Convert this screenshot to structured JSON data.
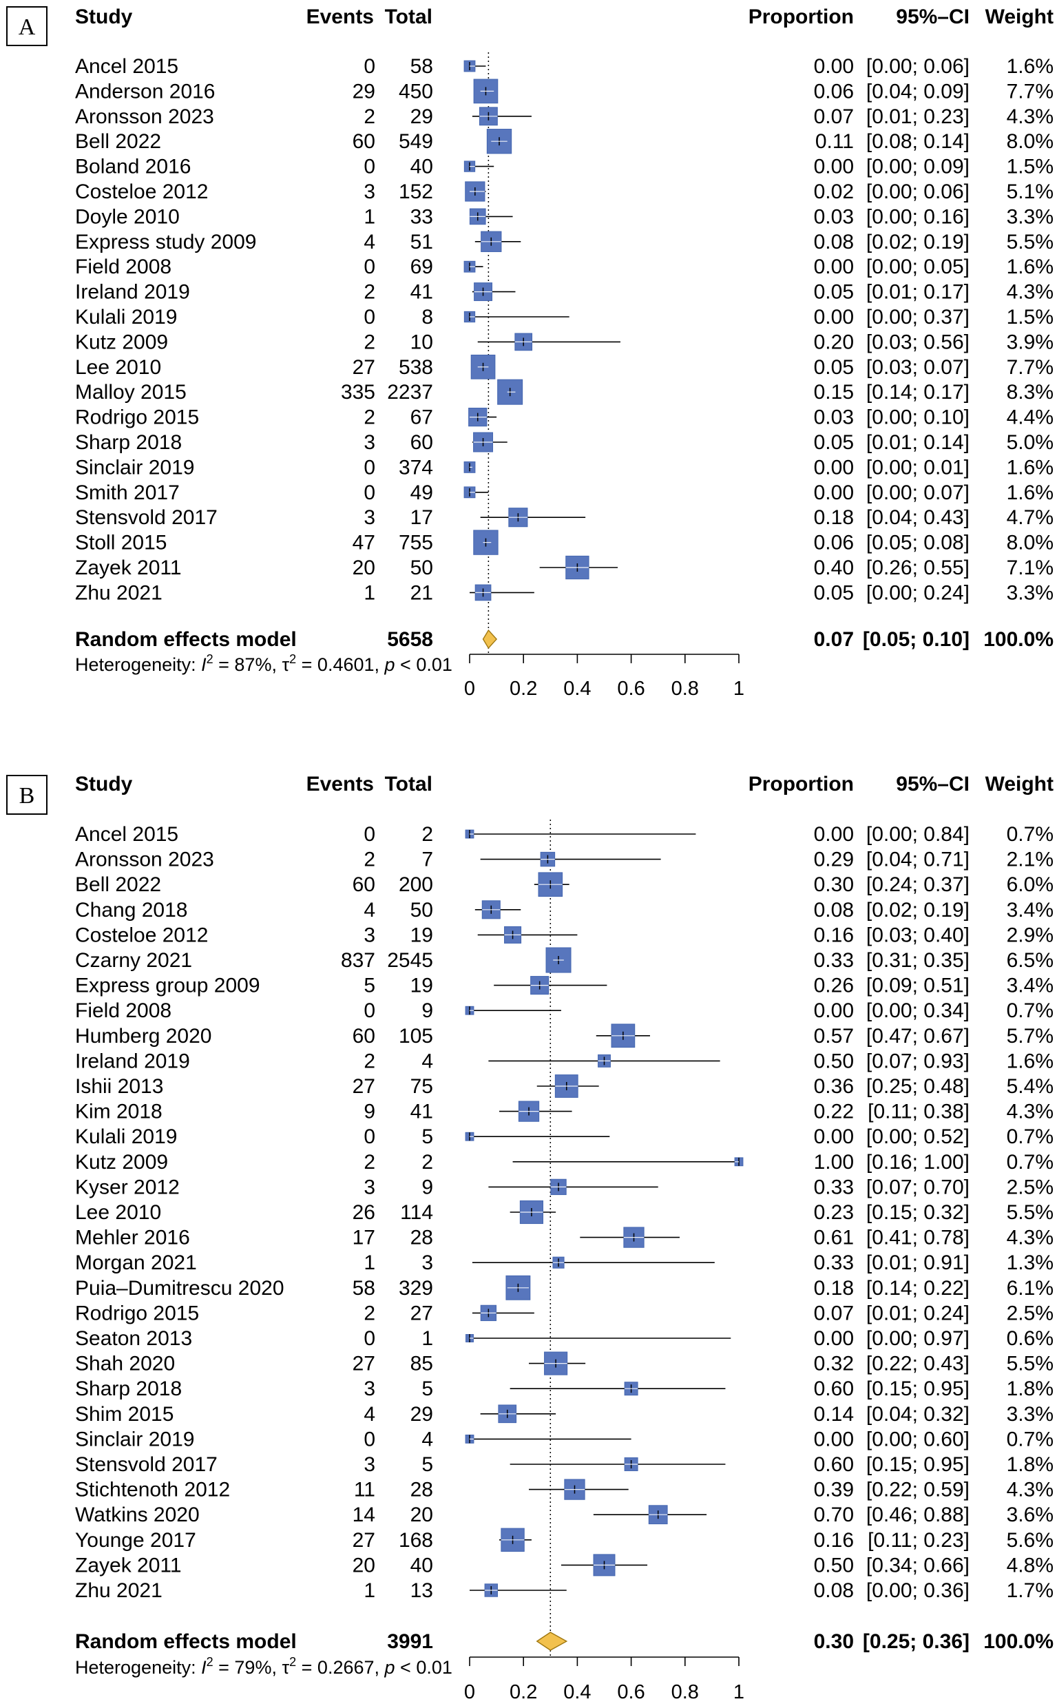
{
  "colors": {
    "box": "#5876bd",
    "box_edge": "#4466b0",
    "diamond": "#f2c14e",
    "diamond_edge": "#a07810",
    "line": "#000000"
  },
  "chart_data": [
    {
      "type": "forest",
      "panel": "A",
      "headers": {
        "study": "Study",
        "events": "Events",
        "total": "Total",
        "proportion": "Proportion",
        "ci": "95%–CI",
        "weight": "Weight"
      },
      "xlim": [
        0,
        1
      ],
      "ticks": [
        "0",
        "0.2",
        "0.4",
        "0.6",
        "0.8",
        "1"
      ],
      "tick_values": [
        0,
        0.2,
        0.4,
        0.6,
        0.8,
        1
      ],
      "rows": [
        {
          "study": "Ancel 2015",
          "events": "0",
          "total": "58",
          "est": 0.0,
          "lo": 0.0,
          "hi": 0.06,
          "prop": "0.00",
          "ci": "[0.00; 0.06]",
          "weight": "1.6%",
          "w": 1.6
        },
        {
          "study": "Anderson 2016",
          "events": "29",
          "total": "450",
          "est": 0.06,
          "lo": 0.04,
          "hi": 0.09,
          "prop": "0.06",
          "ci": "[0.04; 0.09]",
          "weight": "7.7%",
          "w": 7.7
        },
        {
          "study": "Aronsson 2023",
          "events": "2",
          "total": "29",
          "est": 0.07,
          "lo": 0.01,
          "hi": 0.23,
          "prop": "0.07",
          "ci": "[0.01; 0.23]",
          "weight": "4.3%",
          "w": 4.3
        },
        {
          "study": "Bell 2022",
          "events": "60",
          "total": "549",
          "est": 0.11,
          "lo": 0.08,
          "hi": 0.14,
          "prop": "0.11",
          "ci": "[0.08; 0.14]",
          "weight": "8.0%",
          "w": 8.0
        },
        {
          "study": "Boland 2016",
          "events": "0",
          "total": "40",
          "est": 0.0,
          "lo": 0.0,
          "hi": 0.09,
          "prop": "0.00",
          "ci": "[0.00; 0.09]",
          "weight": "1.5%",
          "w": 1.5
        },
        {
          "study": "Costeloe 2012",
          "events": "3",
          "total": "152",
          "est": 0.02,
          "lo": 0.0,
          "hi": 0.06,
          "prop": "0.02",
          "ci": "[0.00; 0.06]",
          "weight": "5.1%",
          "w": 5.1
        },
        {
          "study": "Doyle 2010",
          "events": "1",
          "total": "33",
          "est": 0.03,
          "lo": 0.0,
          "hi": 0.16,
          "prop": "0.03",
          "ci": "[0.00; 0.16]",
          "weight": "3.3%",
          "w": 3.3
        },
        {
          "study": "Express study 2009",
          "events": "4",
          "total": "51",
          "est": 0.08,
          "lo": 0.02,
          "hi": 0.19,
          "prop": "0.08",
          "ci": "[0.02; 0.19]",
          "weight": "5.5%",
          "w": 5.5
        },
        {
          "study": "Field 2008",
          "events": "0",
          "total": "69",
          "est": 0.0,
          "lo": 0.0,
          "hi": 0.05,
          "prop": "0.00",
          "ci": "[0.00; 0.05]",
          "weight": "1.6%",
          "w": 1.6
        },
        {
          "study": "Ireland 2019",
          "events": "2",
          "total": "41",
          "est": 0.05,
          "lo": 0.01,
          "hi": 0.17,
          "prop": "0.05",
          "ci": "[0.01; 0.17]",
          "weight": "4.3%",
          "w": 4.3
        },
        {
          "study": "Kulali 2019",
          "events": "0",
          "total": "8",
          "est": 0.0,
          "lo": 0.0,
          "hi": 0.37,
          "prop": "0.00",
          "ci": "[0.00; 0.37]",
          "weight": "1.5%",
          "w": 1.5
        },
        {
          "study": "Kutz 2009",
          "events": "2",
          "total": "10",
          "est": 0.2,
          "lo": 0.03,
          "hi": 0.56,
          "prop": "0.20",
          "ci": "[0.03; 0.56]",
          "weight": "3.9%",
          "w": 3.9
        },
        {
          "study": "Lee 2010",
          "events": "27",
          "total": "538",
          "est": 0.05,
          "lo": 0.03,
          "hi": 0.07,
          "prop": "0.05",
          "ci": "[0.03; 0.07]",
          "weight": "7.7%",
          "w": 7.7
        },
        {
          "study": "Malloy 2015",
          "events": "335",
          "total": "2237",
          "est": 0.15,
          "lo": 0.14,
          "hi": 0.17,
          "prop": "0.15",
          "ci": "[0.14; 0.17]",
          "weight": "8.3%",
          "w": 8.3
        },
        {
          "study": "Rodrigo 2015",
          "events": "2",
          "total": "67",
          "est": 0.03,
          "lo": 0.0,
          "hi": 0.1,
          "prop": "0.03",
          "ci": "[0.00; 0.10]",
          "weight": "4.4%",
          "w": 4.4
        },
        {
          "study": "Sharp 2018",
          "events": "3",
          "total": "60",
          "est": 0.05,
          "lo": 0.01,
          "hi": 0.14,
          "prop": "0.05",
          "ci": "[0.01; 0.14]",
          "weight": "5.0%",
          "w": 5.0
        },
        {
          "study": "Sinclair 2019",
          "events": "0",
          "total": "374",
          "est": 0.0,
          "lo": 0.0,
          "hi": 0.01,
          "prop": "0.00",
          "ci": "[0.00; 0.01]",
          "weight": "1.6%",
          "w": 1.6
        },
        {
          "study": "Smith 2017",
          "events": "0",
          "total": "49",
          "est": 0.0,
          "lo": 0.0,
          "hi": 0.07,
          "prop": "0.00",
          "ci": "[0.00; 0.07]",
          "weight": "1.6%",
          "w": 1.6
        },
        {
          "study": "Stensvold 2017",
          "events": "3",
          "total": "17",
          "est": 0.18,
          "lo": 0.04,
          "hi": 0.43,
          "prop": "0.18",
          "ci": "[0.04; 0.43]",
          "weight": "4.7%",
          "w": 4.7
        },
        {
          "study": "Stoll 2015",
          "events": "47",
          "total": "755",
          "est": 0.06,
          "lo": 0.05,
          "hi": 0.08,
          "prop": "0.06",
          "ci": "[0.05; 0.08]",
          "weight": "8.0%",
          "w": 8.0
        },
        {
          "study": "Zayek 2011",
          "events": "20",
          "total": "50",
          "est": 0.4,
          "lo": 0.26,
          "hi": 0.55,
          "prop": "0.40",
          "ci": "[0.26; 0.55]",
          "weight": "7.1%",
          "w": 7.1
        },
        {
          "study": "Zhu 2021",
          "events": "1",
          "total": "21",
          "est": 0.05,
          "lo": 0.0,
          "hi": 0.24,
          "prop": "0.05",
          "ci": "[0.00; 0.24]",
          "weight": "3.3%",
          "w": 3.3
        }
      ],
      "summary": {
        "label": "Random effects model",
        "total": "5658",
        "est": 0.07,
        "lo": 0.05,
        "hi": 0.1,
        "prop": "0.07",
        "ci": "[0.05; 0.10]",
        "weight": "100.0%"
      },
      "heterogeneity": {
        "prefix": "Heterogeneity: ",
        "i2_sym": "I",
        "i2_val": " = 87%, ",
        "tau_sym": "τ",
        "tau_val": " = 0.4601, ",
        "p_sym": "p",
        "p_val": " < 0.01",
        "sup": "2"
      }
    },
    {
      "type": "forest",
      "panel": "B",
      "headers": {
        "study": "Study",
        "events": "Events",
        "total": "Total",
        "proportion": "Proportion",
        "ci": "95%–CI",
        "weight": "Weight"
      },
      "xlim": [
        0,
        1
      ],
      "ticks": [
        "0",
        "0.2",
        "0.4",
        "0.6",
        "0.8",
        "1"
      ],
      "tick_values": [
        0,
        0.2,
        0.4,
        0.6,
        0.8,
        1
      ],
      "rows": [
        {
          "study": "Ancel 2015",
          "events": "0",
          "total": "2",
          "est": 0.0,
          "lo": 0.0,
          "hi": 0.84,
          "prop": "0.00",
          "ci": "[0.00; 0.84]",
          "weight": "0.7%",
          "w": 0.7
        },
        {
          "study": "Aronsson 2023",
          "events": "2",
          "total": "7",
          "est": 0.29,
          "lo": 0.04,
          "hi": 0.71,
          "prop": "0.29",
          "ci": "[0.04; 0.71]",
          "weight": "2.1%",
          "w": 2.1
        },
        {
          "study": "Bell 2022",
          "events": "60",
          "total": "200",
          "est": 0.3,
          "lo": 0.24,
          "hi": 0.37,
          "prop": "0.30",
          "ci": "[0.24; 0.37]",
          "weight": "6.0%",
          "w": 6.0
        },
        {
          "study": "Chang 2018",
          "events": "4",
          "total": "50",
          "est": 0.08,
          "lo": 0.02,
          "hi": 0.19,
          "prop": "0.08",
          "ci": "[0.02; 0.19]",
          "weight": "3.4%",
          "w": 3.4
        },
        {
          "study": "Costeloe 2012",
          "events": "3",
          "total": "19",
          "est": 0.16,
          "lo": 0.03,
          "hi": 0.4,
          "prop": "0.16",
          "ci": "[0.03; 0.40]",
          "weight": "2.9%",
          "w": 2.9
        },
        {
          "study": "Czarny 2021",
          "events": "837",
          "total": "2545",
          "est": 0.33,
          "lo": 0.31,
          "hi": 0.35,
          "prop": "0.33",
          "ci": "[0.31; 0.35]",
          "weight": "6.5%",
          "w": 6.5
        },
        {
          "study": "Express group 2009",
          "events": "5",
          "total": "19",
          "est": 0.26,
          "lo": 0.09,
          "hi": 0.51,
          "prop": "0.26",
          "ci": "[0.09; 0.51]",
          "weight": "3.4%",
          "w": 3.4
        },
        {
          "study": "Field 2008",
          "events": "0",
          "total": "9",
          "est": 0.0,
          "lo": 0.0,
          "hi": 0.34,
          "prop": "0.00",
          "ci": "[0.00; 0.34]",
          "weight": "0.7%",
          "w": 0.7
        },
        {
          "study": "Humberg 2020",
          "events": "60",
          "total": "105",
          "est": 0.57,
          "lo": 0.47,
          "hi": 0.67,
          "prop": "0.57",
          "ci": "[0.47; 0.67]",
          "weight": "5.7%",
          "w": 5.7
        },
        {
          "study": "Ireland 2019",
          "events": "2",
          "total": "4",
          "est": 0.5,
          "lo": 0.07,
          "hi": 0.93,
          "prop": "0.50",
          "ci": "[0.07; 0.93]",
          "weight": "1.6%",
          "w": 1.6
        },
        {
          "study": "Ishii 2013",
          "events": "27",
          "total": "75",
          "est": 0.36,
          "lo": 0.25,
          "hi": 0.48,
          "prop": "0.36",
          "ci": "[0.25; 0.48]",
          "weight": "5.4%",
          "w": 5.4
        },
        {
          "study": "Kim 2018",
          "events": "9",
          "total": "41",
          "est": 0.22,
          "lo": 0.11,
          "hi": 0.38,
          "prop": "0.22",
          "ci": "[0.11; 0.38]",
          "weight": "4.3%",
          "w": 4.3
        },
        {
          "study": "Kulali 2019",
          "events": "0",
          "total": "5",
          "est": 0.0,
          "lo": 0.0,
          "hi": 0.52,
          "prop": "0.00",
          "ci": "[0.00; 0.52]",
          "weight": "0.7%",
          "w": 0.7
        },
        {
          "study": "Kutz 2009",
          "events": "2",
          "total": "2",
          "est": 1.0,
          "lo": 0.16,
          "hi": 1.0,
          "prop": "1.00",
          "ci": "[0.16; 1.00]",
          "weight": "0.7%",
          "w": 0.7
        },
        {
          "study": "Kyser 2012",
          "events": "3",
          "total": "9",
          "est": 0.33,
          "lo": 0.07,
          "hi": 0.7,
          "prop": "0.33",
          "ci": "[0.07; 0.70]",
          "weight": "2.5%",
          "w": 2.5
        },
        {
          "study": "Lee 2010",
          "events": "26",
          "total": "114",
          "est": 0.23,
          "lo": 0.15,
          "hi": 0.32,
          "prop": "0.23",
          "ci": "[0.15; 0.32]",
          "weight": "5.5%",
          "w": 5.5
        },
        {
          "study": "Mehler 2016",
          "events": "17",
          "total": "28",
          "est": 0.61,
          "lo": 0.41,
          "hi": 0.78,
          "prop": "0.61",
          "ci": "[0.41; 0.78]",
          "weight": "4.3%",
          "w": 4.3
        },
        {
          "study": "Morgan 2021",
          "events": "1",
          "total": "3",
          "est": 0.33,
          "lo": 0.01,
          "hi": 0.91,
          "prop": "0.33",
          "ci": "[0.01; 0.91]",
          "weight": "1.3%",
          "w": 1.3
        },
        {
          "study": "Puia–Dumitrescu 2020",
          "events": "58",
          "total": "329",
          "est": 0.18,
          "lo": 0.14,
          "hi": 0.22,
          "prop": "0.18",
          "ci": "[0.14; 0.22]",
          "weight": "6.1%",
          "w": 6.1
        },
        {
          "study": "Rodrigo 2015",
          "events": "2",
          "total": "27",
          "est": 0.07,
          "lo": 0.01,
          "hi": 0.24,
          "prop": "0.07",
          "ci": "[0.01; 0.24]",
          "weight": "2.5%",
          "w": 2.5
        },
        {
          "study": "Seaton 2013",
          "events": "0",
          "total": "1",
          "est": 0.0,
          "lo": 0.0,
          "hi": 0.97,
          "prop": "0.00",
          "ci": "[0.00; 0.97]",
          "weight": "0.6%",
          "w": 0.6
        },
        {
          "study": "Shah 2020",
          "events": "27",
          "total": "85",
          "est": 0.32,
          "lo": 0.22,
          "hi": 0.43,
          "prop": "0.32",
          "ci": "[0.22; 0.43]",
          "weight": "5.5%",
          "w": 5.5
        },
        {
          "study": "Sharp 2018",
          "events": "3",
          "total": "5",
          "est": 0.6,
          "lo": 0.15,
          "hi": 0.95,
          "prop": "0.60",
          "ci": "[0.15; 0.95]",
          "weight": "1.8%",
          "w": 1.8
        },
        {
          "study": "Shim 2015",
          "events": "4",
          "total": "29",
          "est": 0.14,
          "lo": 0.04,
          "hi": 0.32,
          "prop": "0.14",
          "ci": "[0.04; 0.32]",
          "weight": "3.3%",
          "w": 3.3
        },
        {
          "study": "Sinclair 2019",
          "events": "0",
          "total": "4",
          "est": 0.0,
          "lo": 0.0,
          "hi": 0.6,
          "prop": "0.00",
          "ci": "[0.00; 0.60]",
          "weight": "0.7%",
          "w": 0.7
        },
        {
          "study": "Stensvold 2017",
          "events": "3",
          "total": "5",
          "est": 0.6,
          "lo": 0.15,
          "hi": 0.95,
          "prop": "0.60",
          "ci": "[0.15; 0.95]",
          "weight": "1.8%",
          "w": 1.8
        },
        {
          "study": "Stichtenoth 2012",
          "events": "11",
          "total": "28",
          "est": 0.39,
          "lo": 0.22,
          "hi": 0.59,
          "prop": "0.39",
          "ci": "[0.22; 0.59]",
          "weight": "4.3%",
          "w": 4.3
        },
        {
          "study": "Watkins 2020",
          "events": "14",
          "total": "20",
          "est": 0.7,
          "lo": 0.46,
          "hi": 0.88,
          "prop": "0.70",
          "ci": "[0.46; 0.88]",
          "weight": "3.6%",
          "w": 3.6
        },
        {
          "study": "Younge 2017",
          "events": "27",
          "total": "168",
          "est": 0.16,
          "lo": 0.11,
          "hi": 0.23,
          "prop": "0.16",
          "ci": "[0.11; 0.23]",
          "weight": "5.6%",
          "w": 5.6
        },
        {
          "study": "Zayek 2011",
          "events": "20",
          "total": "40",
          "est": 0.5,
          "lo": 0.34,
          "hi": 0.66,
          "prop": "0.50",
          "ci": "[0.34; 0.66]",
          "weight": "4.8%",
          "w": 4.8
        },
        {
          "study": "Zhu 2021",
          "events": "1",
          "total": "13",
          "est": 0.08,
          "lo": 0.0,
          "hi": 0.36,
          "prop": "0.08",
          "ci": "[0.00; 0.36]",
          "weight": "1.7%",
          "w": 1.7
        }
      ],
      "summary": {
        "label": "Random effects model",
        "total": "3991",
        "est": 0.3,
        "lo": 0.25,
        "hi": 0.36,
        "prop": "0.30",
        "ci": "[0.25; 0.36]",
        "weight": "100.0%"
      },
      "heterogeneity": {
        "prefix": "Heterogeneity: ",
        "i2_sym": "I",
        "i2_val": " = 79%, ",
        "tau_sym": "τ",
        "tau_val": " = 0.2667, ",
        "p_sym": "p",
        "p_val": " < 0.01",
        "sup": "2"
      }
    }
  ]
}
